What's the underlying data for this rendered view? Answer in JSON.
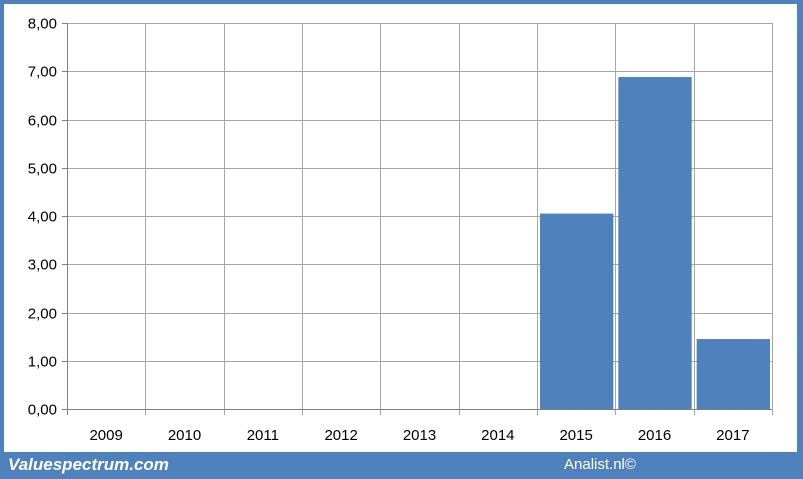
{
  "footer": {
    "source_left": "Valuespectrum.com",
    "source_right": "Analist.nl©"
  },
  "colors": {
    "frame": "#4f81bd",
    "bar": "#4f81bd",
    "grid": "#a6a6a6"
  },
  "chart_data": {
    "type": "bar",
    "categories": [
      "2009",
      "2010",
      "2011",
      "2012",
      "2013",
      "2014",
      "2015",
      "2016",
      "2017"
    ],
    "values": [
      0,
      0,
      0,
      0,
      0,
      0,
      4.05,
      6.88,
      1.45
    ],
    "ylim": [
      0,
      8
    ],
    "yticks": [
      0,
      1,
      2,
      3,
      4,
      5,
      6,
      7,
      8
    ],
    "ytick_labels": [
      "0,00",
      "1,00",
      "2,00",
      "3,00",
      "4,00",
      "5,00",
      "6,00",
      "7,00",
      "8,00"
    ],
    "grid": true,
    "legend": "none"
  }
}
